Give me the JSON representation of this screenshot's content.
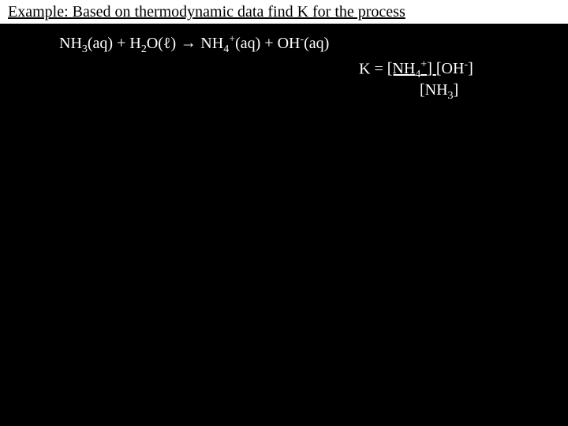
{
  "header": "Example: Based on thermodynamic data find K for the process",
  "reaction": {
    "lhs1_species": "NH",
    "lhs1_sub": "3",
    "lhs1_phase": "(aq)",
    "plus1": " + ",
    "lhs2_species": "H",
    "lhs2_sub": "2",
    "lhs2_species2": "O(ℓ)",
    "arrow": " → ",
    "rhs1_species": "NH",
    "rhs1_sub": "4",
    "rhs1_sup": "+",
    "rhs1_phase": "(aq)",
    "plus2": " + ",
    "rhs2_species": "OH",
    "rhs2_sup": "-",
    "rhs2_phase": "(aq)"
  },
  "equilibrium": {
    "prefix": "K = ",
    "num1_open": "[NH",
    "num1_sub": "4",
    "num1_sup": "+",
    "num1_close": "] ",
    "num2_open": "[OH",
    "num2_sup": "-",
    "num2_close": "]",
    "denom_open": "[NH",
    "denom_sub": "3",
    "denom_close": "]"
  },
  "colors": {
    "background": "#000000",
    "header_bg": "#ffffff",
    "header_text": "#000000",
    "body_text": "#ffffff"
  }
}
